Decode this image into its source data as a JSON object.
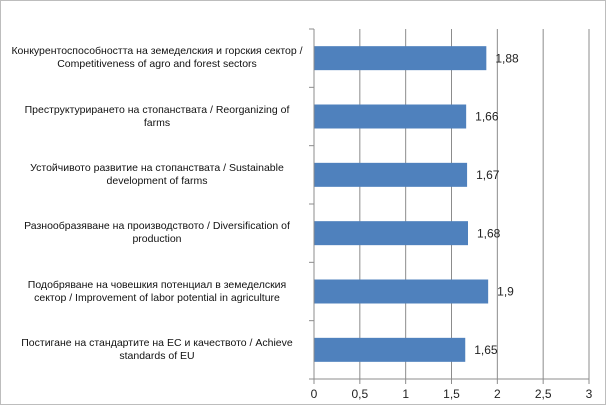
{
  "chart_data": {
    "type": "bar",
    "orientation": "horizontal",
    "categories": [
      "Конкурентоспособността на земеделския и горския сектор / Competitiveness of agro and forest sectors",
      "Преструктурирането на стопанствата / Reorganizing of farms",
      "Устойчивото развитие на стопанствата / Sustainable development of farms",
      "Разнообразяване на производството / Diversification of production",
      "Подобряване на човешкия потенциал в земеделския сектор / Improvement of labor potential in agriculture",
      "Постигане на стандартите на ЕС и качеството / Achieve standards of EU"
    ],
    "values": [
      1.88,
      1.66,
      1.67,
      1.68,
      1.9,
      1.65
    ],
    "value_labels": [
      "1,88",
      "1,66",
      "1,67",
      "1,68",
      "1,9",
      "1,65"
    ],
    "color": "#4f81bd",
    "xlim": [
      0,
      3
    ],
    "xticks": [
      0,
      {
        "value": 0.5,
        "label": "0,5"
      },
      1,
      {
        "value": 1.5,
        "label": "1,5"
      },
      2,
      {
        "value": 2.5,
        "label": "2,5"
      },
      3
    ],
    "grid": true
  }
}
